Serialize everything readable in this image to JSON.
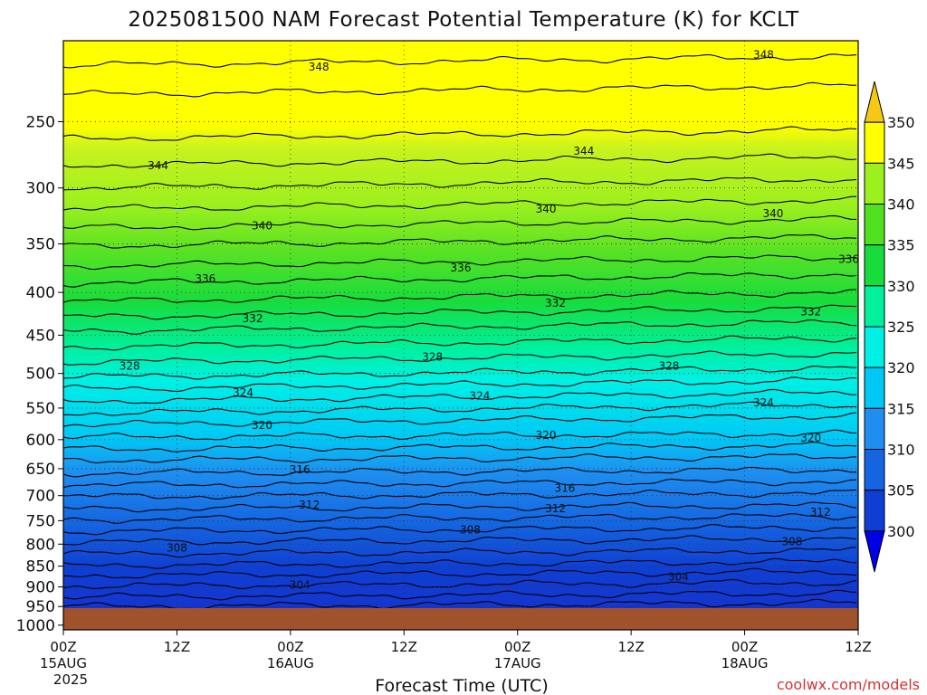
{
  "chart_data": {
    "type": "time-height contour",
    "title": "2025081500 NAM Forecast Potential Temperature (K) for KCLT",
    "xlabel": "Forecast Time (UTC)",
    "ylabel": "",
    "credit": "coolwx.com/models",
    "x_ticks": [
      {
        "hour": 0,
        "label": "00Z",
        "sub": "15AUG",
        "sub2": "2025"
      },
      {
        "hour": 12,
        "label": "12Z",
        "sub": "",
        "sub2": ""
      },
      {
        "hour": 24,
        "label": "00Z",
        "sub": "16AUG",
        "sub2": ""
      },
      {
        "hour": 36,
        "label": "12Z",
        "sub": "",
        "sub2": ""
      },
      {
        "hour": 48,
        "label": "00Z",
        "sub": "17AUG",
        "sub2": ""
      },
      {
        "hour": 60,
        "label": "12Z",
        "sub": "",
        "sub2": ""
      },
      {
        "hour": 72,
        "label": "00Z",
        "sub": "18AUG",
        "sub2": ""
      },
      {
        "hour": 84,
        "label": "12Z",
        "sub": "",
        "sub2": ""
      }
    ],
    "x_range_hours": [
      0,
      84
    ],
    "pressure_levels_hPa": [
      250,
      300,
      350,
      400,
      450,
      500,
      550,
      600,
      650,
      700,
      750,
      800,
      850,
      900,
      950,
      1000
    ],
    "pressure_range_hPa": [
      1013,
      200
    ],
    "colorbar": {
      "levels": [
        300,
        305,
        310,
        315,
        320,
        325,
        330,
        335,
        340,
        345,
        350
      ],
      "colors": [
        "#0000e8",
        "#0f3fd2",
        "#1565e0",
        "#1e8ff0",
        "#00c8f5",
        "#00f0e6",
        "#00f09c",
        "#18dc3c",
        "#50e020",
        "#9cf01e",
        "#ffff00",
        "#f5c814"
      ],
      "extend": "both"
    },
    "grid": true,
    "contour_interval_K": 2,
    "contour_labels": [
      {
        "value": "348",
        "hour": 27,
        "p": 215
      },
      {
        "value": "348",
        "hour": 74,
        "p": 208
      },
      {
        "value": "344",
        "hour": 10,
        "p": 282
      },
      {
        "value": "344",
        "hour": 55,
        "p": 271
      },
      {
        "value": "340",
        "hour": 21,
        "p": 333
      },
      {
        "value": "340",
        "hour": 51,
        "p": 318
      },
      {
        "value": "340",
        "hour": 75,
        "p": 322
      },
      {
        "value": "336",
        "hour": 15,
        "p": 385
      },
      {
        "value": "336",
        "hour": 42,
        "p": 374
      },
      {
        "value": "336",
        "hour": 83,
        "p": 365
      },
      {
        "value": "332",
        "hour": 20,
        "p": 430
      },
      {
        "value": "332",
        "hour": 52,
        "p": 412
      },
      {
        "value": "332",
        "hour": 79,
        "p": 422
      },
      {
        "value": "328",
        "hour": 7,
        "p": 490
      },
      {
        "value": "328",
        "hour": 39,
        "p": 478
      },
      {
        "value": "328",
        "hour": 64,
        "p": 490
      },
      {
        "value": "324",
        "hour": 19,
        "p": 527
      },
      {
        "value": "324",
        "hour": 44,
        "p": 532
      },
      {
        "value": "324",
        "hour": 74,
        "p": 542
      },
      {
        "value": "320",
        "hour": 21,
        "p": 577
      },
      {
        "value": "320",
        "hour": 51,
        "p": 593
      },
      {
        "value": "320",
        "hour": 79,
        "p": 597
      },
      {
        "value": "316",
        "hour": 25,
        "p": 652
      },
      {
        "value": "316",
        "hour": 53,
        "p": 686
      },
      {
        "value": "316",
        "hour": 85,
        "p": 659
      },
      {
        "value": "312",
        "hour": 26,
        "p": 718
      },
      {
        "value": "312",
        "hour": 52,
        "p": 725
      },
      {
        "value": "312",
        "hour": 80,
        "p": 733
      },
      {
        "value": "308",
        "hour": 12,
        "p": 808
      },
      {
        "value": "308",
        "hour": 43,
        "p": 769
      },
      {
        "value": "308",
        "hour": 77,
        "p": 794
      },
      {
        "value": "304",
        "hour": 25,
        "p": 895
      },
      {
        "value": "304",
        "hour": 65,
        "p": 876
      }
    ]
  }
}
